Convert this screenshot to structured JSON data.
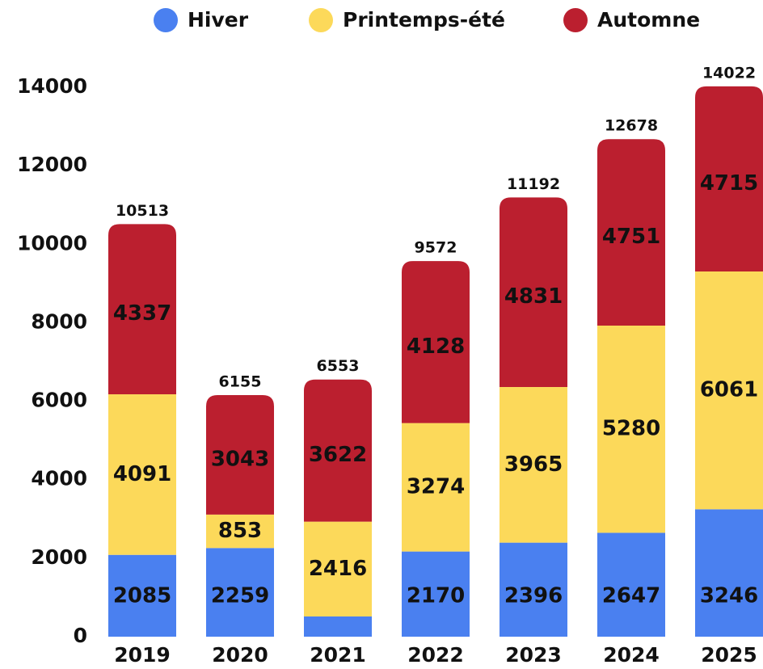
{
  "chart_data": {
    "type": "stacked-bar",
    "categories": [
      "2019",
      "2020",
      "2021",
      "2022",
      "2023",
      "2024",
      "2025"
    ],
    "series": [
      {
        "name": "Hiver",
        "color": "#4a80f0",
        "values": [
          2085,
          2259,
          515,
          2170,
          2396,
          2647,
          3246
        ]
      },
      {
        "name": "Printemps-été",
        "color": "#fcd95a",
        "values": [
          4091,
          853,
          2416,
          3274,
          3965,
          5280,
          6061
        ]
      },
      {
        "name": "Automne",
        "color": "#bb1f2f",
        "values": [
          4337,
          3043,
          3622,
          4128,
          4831,
          4751,
          4715
        ]
      }
    ],
    "totals": [
      10513,
      6155,
      6553,
      9572,
      11192,
      12678,
      14022
    ],
    "ylim": [
      0,
      14000
    ],
    "yticks": [
      0,
      2000,
      4000,
      6000,
      8000,
      10000,
      12000,
      14000
    ],
    "legend": "top"
  }
}
